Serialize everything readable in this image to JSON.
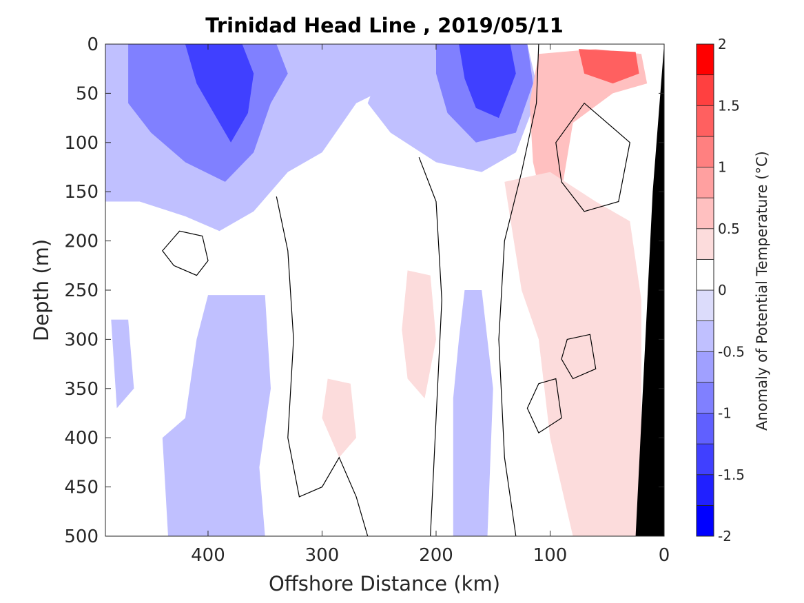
{
  "chart_data": {
    "type": "heatmap",
    "title": "Trinidad Head Line , 2019/05/11",
    "xlabel": "Offshore Distance (km)",
    "ylabel": "Depth (m)",
    "xlim": [
      490,
      0
    ],
    "ylim": [
      0,
      500
    ],
    "x_ticks": [
      400,
      300,
      200,
      100,
      0
    ],
    "x_tick_labels": [
      "400",
      "300",
      "200",
      "100",
      "0"
    ],
    "y_ticks": [
      0,
      50,
      100,
      150,
      200,
      250,
      300,
      350,
      400,
      450,
      500
    ],
    "y_tick_labels": [
      "0",
      "50",
      "100",
      "150",
      "200",
      "250",
      "300",
      "350",
      "400",
      "450",
      "500"
    ],
    "colorbar": {
      "label": "Anomaly of Potential Temperature (°C)",
      "range": [
        -2,
        2
      ],
      "step": 0.25,
      "tick_values": [
        2,
        1.5,
        1,
        0.5,
        0,
        -0.5,
        -1,
        -1.5,
        -2
      ],
      "tick_labels": [
        "2",
        "1.5",
        "1",
        "0.5",
        "0",
        "-0.5",
        "-1",
        "-1.5",
        "-2"
      ],
      "levels_low_to_high": [
        {
          "min": -2.0,
          "max": -1.75,
          "color": "#0000ff"
        },
        {
          "min": -1.75,
          "max": -1.5,
          "color": "#2020ff"
        },
        {
          "min": -1.5,
          "max": -1.25,
          "color": "#4040ff"
        },
        {
          "min": -1.25,
          "max": -1.0,
          "color": "#6060ff"
        },
        {
          "min": -1.0,
          "max": -0.75,
          "color": "#8080ff"
        },
        {
          "min": -0.75,
          "max": -0.5,
          "color": "#a0a0ff"
        },
        {
          "min": -0.5,
          "max": -0.25,
          "color": "#c0c0ff"
        },
        {
          "min": -0.25,
          "max": 0.0,
          "color": "#dcdcfb"
        },
        {
          "min": 0.0,
          "max": 0.25,
          "color": "#ffffff"
        },
        {
          "min": 0.25,
          "max": 0.5,
          "color": "#fcdcdc"
        },
        {
          "min": 0.5,
          "max": 0.75,
          "color": "#ffc0c0"
        },
        {
          "min": 0.75,
          "max": 1.0,
          "color": "#ffa0a0"
        },
        {
          "min": 1.0,
          "max": 1.25,
          "color": "#ff8080"
        },
        {
          "min": 1.25,
          "max": 1.5,
          "color": "#ff6060"
        },
        {
          "min": 1.5,
          "max": 1.75,
          "color": "#ff4040"
        },
        {
          "min": 1.75,
          "max": 2.0,
          "color": "#ff0000"
        }
      ]
    },
    "regions": [
      {
        "name": "cold-surface-offshore",
        "value": -0.4,
        "points": [
          [
            490,
            0
          ],
          [
            240,
            0
          ],
          [
            235,
            40
          ],
          [
            270,
            60
          ],
          [
            300,
            110
          ],
          [
            330,
            130
          ],
          [
            360,
            170
          ],
          [
            390,
            190
          ],
          [
            420,
            175
          ],
          [
            460,
            160
          ],
          [
            490,
            160
          ]
        ]
      },
      {
        "name": "cold-surface-nearshore",
        "value": -0.4,
        "points": [
          [
            240,
            0
          ],
          [
            120,
            0
          ],
          [
            110,
            50
          ],
          [
            130,
            110
          ],
          [
            160,
            130
          ],
          [
            200,
            120
          ],
          [
            240,
            90
          ],
          [
            260,
            60
          ]
        ]
      },
      {
        "name": "cold-core-offshore",
        "value": -0.9,
        "points": [
          [
            470,
            0
          ],
          [
            340,
            0
          ],
          [
            330,
            30
          ],
          [
            345,
            60
          ],
          [
            360,
            110
          ],
          [
            385,
            140
          ],
          [
            420,
            120
          ],
          [
            450,
            90
          ],
          [
            470,
            60
          ]
        ]
      },
      {
        "name": "cold-core-offshore-strong",
        "value": -1.4,
        "points": [
          [
            420,
            0
          ],
          [
            370,
            0
          ],
          [
            360,
            30
          ],
          [
            365,
            70
          ],
          [
            380,
            100
          ],
          [
            395,
            70
          ],
          [
            410,
            40
          ]
        ]
      },
      {
        "name": "cold-core-nearshore",
        "value": -0.9,
        "points": [
          [
            200,
            0
          ],
          [
            120,
            0
          ],
          [
            115,
            40
          ],
          [
            130,
            90
          ],
          [
            165,
            100
          ],
          [
            190,
            70
          ],
          [
            200,
            30
          ]
        ]
      },
      {
        "name": "cold-core-nearshore-strong",
        "value": -1.4,
        "points": [
          [
            180,
            0
          ],
          [
            135,
            0
          ],
          [
            130,
            30
          ],
          [
            145,
            75
          ],
          [
            165,
            65
          ],
          [
            175,
            35
          ]
        ]
      },
      {
        "name": "warm-shelf-surface",
        "value": 0.6,
        "points": [
          [
            110,
            10
          ],
          [
            60,
            5
          ],
          [
            20,
            10
          ],
          [
            15,
            40
          ],
          [
            45,
            50
          ],
          [
            80,
            80
          ],
          [
            90,
            150
          ],
          [
            105,
            170
          ],
          [
            115,
            120
          ],
          [
            118,
            60
          ]
        ]
      },
      {
        "name": "warm-shelf-core",
        "value": 1.4,
        "points": [
          [
            75,
            5
          ],
          [
            25,
            8
          ],
          [
            22,
            30
          ],
          [
            45,
            40
          ],
          [
            70,
            30
          ]
        ]
      },
      {
        "name": "warm-slope",
        "value": 0.4,
        "points": [
          [
            140,
            140
          ],
          [
            100,
            130
          ],
          [
            60,
            160
          ],
          [
            30,
            180
          ],
          [
            20,
            260
          ],
          [
            20,
            500
          ],
          [
            80,
            500
          ],
          [
            100,
            400
          ],
          [
            110,
            300
          ],
          [
            125,
            250
          ]
        ]
      },
      {
        "name": "warm-lens-mid",
        "value": 0.3,
        "points": [
          [
            225,
            230
          ],
          [
            205,
            235
          ],
          [
            200,
            300
          ],
          [
            210,
            360
          ],
          [
            225,
            340
          ],
          [
            230,
            290
          ]
        ]
      },
      {
        "name": "warm-lens-deep",
        "value": 0.3,
        "points": [
          [
            295,
            340
          ],
          [
            275,
            345
          ],
          [
            270,
            400
          ],
          [
            285,
            420
          ],
          [
            300,
            380
          ]
        ]
      },
      {
        "name": "cool-column-offshore",
        "value": -0.3,
        "points": [
          [
            400,
            255
          ],
          [
            350,
            255
          ],
          [
            345,
            350
          ],
          [
            355,
            430
          ],
          [
            350,
            500
          ],
          [
            435,
            500
          ],
          [
            440,
            400
          ],
          [
            420,
            380
          ],
          [
            410,
            300
          ]
        ]
      },
      {
        "name": "cool-column-nearshore",
        "value": -0.3,
        "points": [
          [
            175,
            250
          ],
          [
            160,
            250
          ],
          [
            150,
            350
          ],
          [
            155,
            500
          ],
          [
            185,
            500
          ],
          [
            185,
            360
          ],
          [
            180,
            300
          ]
        ]
      },
      {
        "name": "cool-sliver-far-offshore",
        "value": -0.3,
        "points": [
          [
            485,
            280
          ],
          [
            470,
            280
          ],
          [
            465,
            350
          ],
          [
            480,
            370
          ]
        ]
      }
    ],
    "zero_contours": [
      {
        "name": "zero-contour-nearshore-front",
        "closed": false,
        "points": [
          [
            110,
            0
          ],
          [
            112,
            60
          ],
          [
            125,
            130
          ],
          [
            140,
            200
          ],
          [
            145,
            300
          ],
          [
            140,
            420
          ],
          [
            130,
            500
          ]
        ]
      },
      {
        "name": "zero-contour-offshore-loop",
        "closed": true,
        "points": [
          [
            440,
            210
          ],
          [
            425,
            190
          ],
          [
            405,
            195
          ],
          [
            400,
            220
          ],
          [
            410,
            235
          ],
          [
            430,
            225
          ]
        ]
      },
      {
        "name": "zero-contour-mid-column",
        "closed": false,
        "points": [
          [
            340,
            155
          ],
          [
            330,
            210
          ],
          [
            325,
            300
          ],
          [
            330,
            400
          ],
          [
            320,
            460
          ],
          [
            300,
            450
          ],
          [
            285,
            420
          ],
          [
            270,
            460
          ],
          [
            260,
            500
          ]
        ]
      },
      {
        "name": "zero-contour-mid-column-east",
        "closed": false,
        "points": [
          [
            215,
            115
          ],
          [
            200,
            160
          ],
          [
            195,
            260
          ],
          [
            200,
            380
          ],
          [
            205,
            500
          ]
        ]
      },
      {
        "name": "zero-contour-shelf-loop",
        "closed": true,
        "points": [
          [
            95,
            100
          ],
          [
            70,
            60
          ],
          [
            30,
            100
          ],
          [
            40,
            160
          ],
          [
            70,
            170
          ],
          [
            90,
            140
          ]
        ]
      },
      {
        "name": "zero-contour-slope-loop-1",
        "closed": true,
        "points": [
          [
            85,
            300
          ],
          [
            65,
            295
          ],
          [
            60,
            330
          ],
          [
            80,
            340
          ],
          [
            90,
            320
          ]
        ]
      },
      {
        "name": "zero-contour-slope-loop-2",
        "closed": true,
        "points": [
          [
            110,
            345
          ],
          [
            95,
            340
          ],
          [
            90,
            380
          ],
          [
            110,
            395
          ],
          [
            120,
            370
          ]
        ]
      }
    ],
    "bathymetry": {
      "label": "",
      "color": "#000000",
      "points": [
        [
          0,
          0
        ],
        [
          0,
          500
        ],
        [
          25,
          500
        ],
        [
          10,
          150
        ]
      ]
    }
  }
}
